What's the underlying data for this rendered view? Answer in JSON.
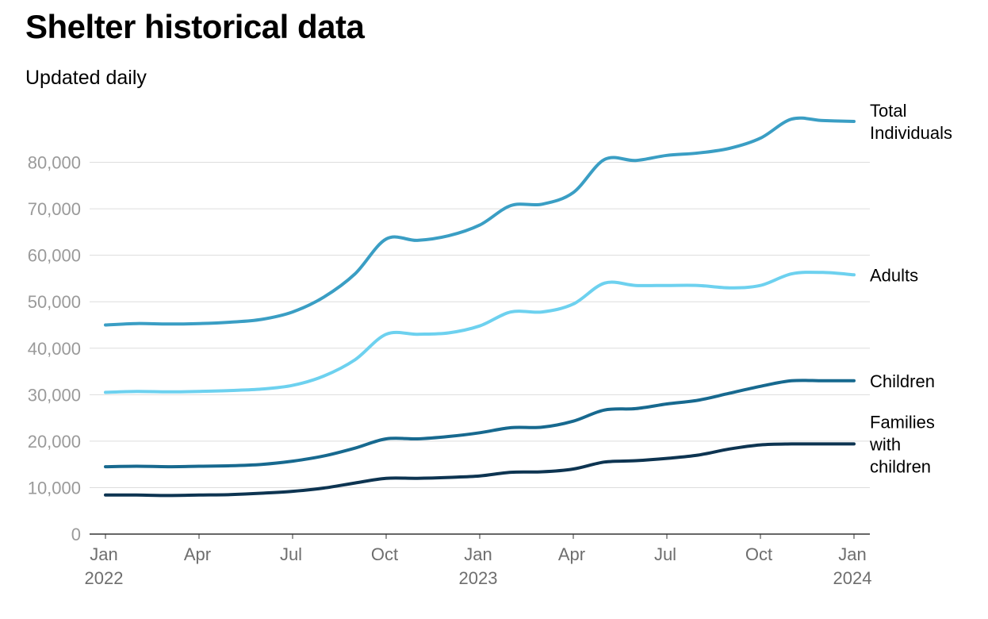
{
  "header": {
    "title": "Shelter historical data",
    "subtitle": "Updated daily"
  },
  "chart_data": {
    "type": "line",
    "title": "Shelter historical data",
    "subtitle": "Updated daily",
    "xlabel": "",
    "ylabel": "",
    "ylim": [
      0,
      90000
    ],
    "y_ticks": [
      0,
      10000,
      20000,
      30000,
      40000,
      50000,
      60000,
      70000,
      80000
    ],
    "y_tick_labels": [
      "0",
      "10,000",
      "20,000",
      "30,000",
      "40,000",
      "50,000",
      "60,000",
      "70,000",
      "80,000"
    ],
    "x_ticks": [
      {
        "month": 0,
        "label": "Jan",
        "year": "2022"
      },
      {
        "month": 3,
        "label": "Apr",
        "year": ""
      },
      {
        "month": 6,
        "label": "Jul",
        "year": ""
      },
      {
        "month": 9,
        "label": "Oct",
        "year": ""
      },
      {
        "month": 12,
        "label": "Jan",
        "year": "2023"
      },
      {
        "month": 15,
        "label": "Apr",
        "year": ""
      },
      {
        "month": 18,
        "label": "Jul",
        "year": ""
      },
      {
        "month": 21,
        "label": "Oct",
        "year": ""
      },
      {
        "month": 24,
        "label": "Jan",
        "year": "2024"
      }
    ],
    "grid": true,
    "x": [
      "2022-01",
      "2022-02",
      "2022-03",
      "2022-04",
      "2022-05",
      "2022-06",
      "2022-07",
      "2022-08",
      "2022-09",
      "2022-10",
      "2022-11",
      "2022-12",
      "2023-01",
      "2023-02",
      "2023-03",
      "2023-04",
      "2023-05",
      "2023-06",
      "2023-07",
      "2023-08",
      "2023-09",
      "2023-10",
      "2023-11",
      "2023-12",
      "2024-01"
    ],
    "series": [
      {
        "name": "Total Individuals",
        "label_lines": [
          "Total",
          "Individuals"
        ],
        "color": "#3a9ec4",
        "values": [
          45000,
          45300,
          45200,
          45300,
          45600,
          46200,
          47800,
          51000,
          56000,
          63500,
          63200,
          64200,
          66500,
          70700,
          71000,
          73500,
          80600,
          80400,
          81500,
          82000,
          83000,
          85200,
          89300,
          89000,
          88800
        ]
      },
      {
        "name": "Adults",
        "label_lines": [
          "Adults"
        ],
        "color": "#6dd1ef",
        "values": [
          30500,
          30700,
          30600,
          30700,
          30900,
          31200,
          32000,
          34000,
          37500,
          43000,
          43000,
          43300,
          44800,
          47800,
          47800,
          49500,
          54000,
          53500,
          53500,
          53500,
          53000,
          53500,
          56000,
          56300,
          55800
        ]
      },
      {
        "name": "Children",
        "label_lines": [
          "Children"
        ],
        "color": "#17698f",
        "values": [
          14500,
          14600,
          14500,
          14600,
          14700,
          15000,
          15700,
          16800,
          18500,
          20500,
          20500,
          21000,
          21800,
          22900,
          23000,
          24300,
          26700,
          27000,
          28000,
          28800,
          30300,
          31800,
          33000,
          33000,
          33000
        ]
      },
      {
        "name": "Families with children",
        "label_lines": [
          "Families",
          "with",
          "children"
        ],
        "color": "#0d3451",
        "values": [
          8400,
          8400,
          8300,
          8400,
          8500,
          8800,
          9200,
          9900,
          11000,
          12000,
          12000,
          12200,
          12500,
          13300,
          13400,
          14000,
          15500,
          15800,
          16300,
          17000,
          18300,
          19200,
          19400,
          19400,
          19400
        ]
      }
    ]
  }
}
